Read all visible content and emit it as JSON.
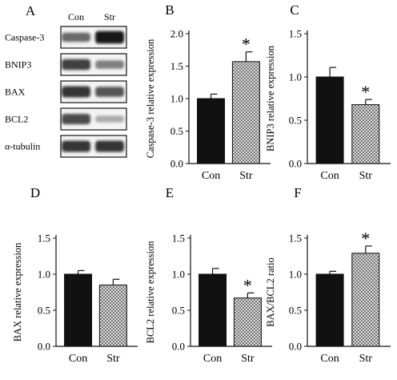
{
  "figure": {
    "panels": [
      "A",
      "B",
      "C",
      "D",
      "E",
      "F"
    ]
  },
  "western_blot": {
    "panel": "A",
    "lanes": [
      "Con",
      "Str"
    ],
    "rows": [
      {
        "label": "Caspase-3",
        "intensity": [
          0.55,
          0.95
        ]
      },
      {
        "label": "BNIP3",
        "intensity": [
          0.75,
          0.45
        ]
      },
      {
        "label": "BAX",
        "intensity": [
          0.8,
          0.65
        ]
      },
      {
        "label": "BCL2",
        "intensity": [
          0.7,
          0.25
        ]
      },
      {
        "label": "α-tubulin",
        "intensity": [
          0.8,
          0.8
        ]
      }
    ]
  },
  "chart_data": [
    {
      "panel": "B",
      "type": "bar",
      "categories": [
        "Con",
        "Str"
      ],
      "values": [
        1.0,
        1.57
      ],
      "errors": [
        0.07,
        0.15
      ],
      "ylabel": "Caspase-3 relative expression",
      "ylim": [
        0,
        2.0
      ],
      "yticks": [
        "0.0",
        "0.5",
        "1.0",
        "1.5",
        "2.0"
      ],
      "significance": [
        "",
        "*"
      ]
    },
    {
      "panel": "C",
      "type": "bar",
      "categories": [
        "Con",
        "Str"
      ],
      "values": [
        1.0,
        0.68
      ],
      "errors": [
        0.11,
        0.06
      ],
      "ylabel": "BNIP3 relative expression",
      "ylim": [
        0,
        1.5
      ],
      "yticks": [
        "0.0",
        "0.5",
        "1.0",
        "1.5"
      ],
      "significance": [
        "",
        "*"
      ]
    },
    {
      "panel": "D",
      "type": "bar",
      "categories": [
        "Con",
        "Str"
      ],
      "values": [
        1.0,
        0.85
      ],
      "errors": [
        0.05,
        0.08
      ],
      "ylabel": "BAX relative expression",
      "ylim": [
        0,
        1.5
      ],
      "yticks": [
        "0.0",
        "0.5",
        "1.0",
        "1.5"
      ],
      "significance": [
        "",
        ""
      ]
    },
    {
      "panel": "E",
      "type": "bar",
      "categories": [
        "Con",
        "Str"
      ],
      "values": [
        1.0,
        0.67
      ],
      "errors": [
        0.08,
        0.07
      ],
      "ylabel": "BCL2 relative expression",
      "ylim": [
        0,
        1.5
      ],
      "yticks": [
        "0.0",
        "0.5",
        "1.0",
        "1.5"
      ],
      "significance": [
        "",
        "*"
      ]
    },
    {
      "panel": "F",
      "type": "bar",
      "categories": [
        "Con",
        "Str"
      ],
      "values": [
        1.0,
        1.29
      ],
      "errors": [
        0.04,
        0.1
      ],
      "ylabel": "BAX/BCL2 ratio",
      "ylim": [
        0,
        1.5
      ],
      "yticks": [
        "0.0",
        "0.5",
        "1.0",
        "1.5"
      ],
      "significance": [
        "",
        "*"
      ]
    }
  ],
  "style": {
    "con_bar_color": "#111111",
    "str_bar_pattern": "crosshatch",
    "axis_color": "#111111"
  }
}
